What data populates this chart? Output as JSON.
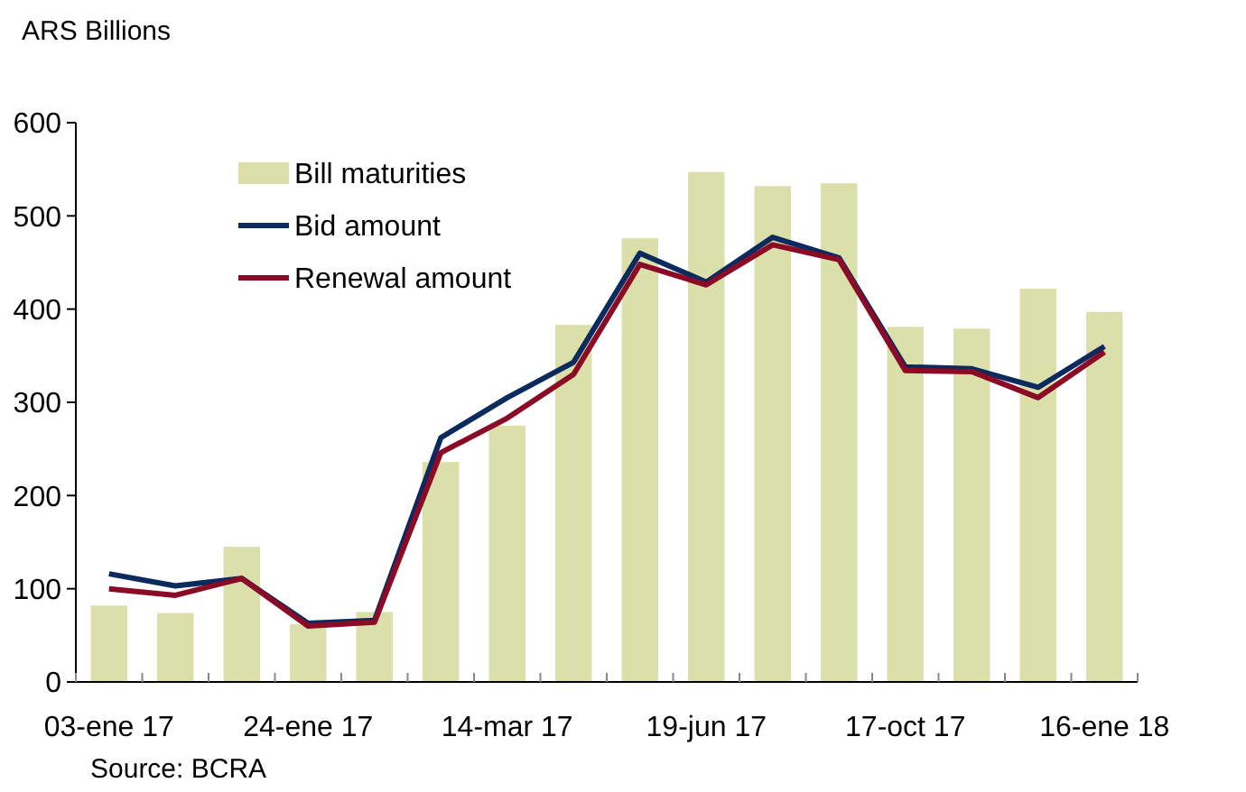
{
  "chart_data": {
    "type": "bar",
    "ylabel": "ARS Billions",
    "annotations": [
      "Source: BCRA"
    ],
    "categories": [
      "03-ene 17",
      null,
      null,
      "24-ene 17",
      null,
      null,
      "14-mar 17",
      null,
      null,
      "19-jun 17",
      null,
      null,
      "17-oct 17",
      null,
      null,
      "16-ene 18"
    ],
    "series": [
      {
        "name": "Bill maturities",
        "color": "#dbdfaa",
        "values": [
          82,
          74,
          145,
          62,
          75,
          236,
          275,
          383,
          476,
          547,
          532,
          535,
          381,
          379,
          422,
          397
        ]
      },
      {
        "name": "Bid amount",
        "type": "line",
        "color": "#0b2a5e",
        "values": [
          116,
          103,
          111,
          63,
          66,
          262,
          305,
          343,
          460,
          429,
          477,
          455,
          338,
          336,
          316,
          360
        ]
      },
      {
        "name": "Renewal amount",
        "type": "line",
        "color": "#8b0a26",
        "values": [
          100,
          93,
          111,
          60,
          64,
          246,
          283,
          330,
          448,
          426,
          469,
          453,
          334,
          333,
          305,
          354
        ]
      }
    ],
    "ylim": [
      0,
      600
    ],
    "yticks": [
      0,
      100,
      200,
      300,
      400,
      500,
      600
    ],
    "legend": "top left",
    "grid": false,
    "line_style": "solid"
  }
}
